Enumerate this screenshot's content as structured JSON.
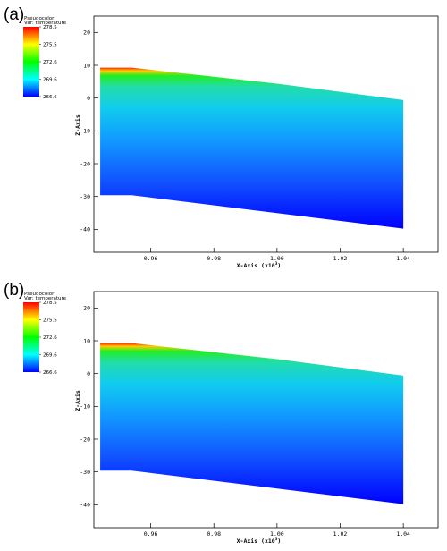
{
  "chart_data": [
    {
      "type": "heatmap",
      "panel_label": "(a)",
      "legend_title": "Pseudocolor",
      "legend_var": "Var: temperature",
      "legend_values": [
        "278.5",
        "275.5",
        "272.6",
        "269.6",
        "266.6"
      ],
      "value_range": [
        266.6,
        278.5
      ],
      "xlabel": "X-Axis (x10",
      "xlabel_exp": "3",
      "xlabel_close": ")",
      "ylabel": "Z-Axis",
      "x_ticks": [
        "0.96",
        "0.98",
        "1.00",
        "1.02",
        "1.04"
      ],
      "x_tick_values": [
        0.96,
        0.98,
        1.0,
        1.02,
        1.04
      ],
      "xlim": [
        0.942,
        1.051
      ],
      "y_ticks": [
        "20",
        "10",
        "0",
        "-10",
        "-20",
        "-30",
        "-40"
      ],
      "y_tick_values": [
        20,
        10,
        0,
        -10,
        -20,
        -30,
        -40
      ],
      "ylim": [
        -47,
        25
      ],
      "domain_top": [
        [
          0.944,
          9.3
        ],
        [
          0.954,
          9.3
        ],
        [
          1.0,
          4.4
        ],
        [
          1.04,
          -0.6
        ]
      ],
      "domain_bottom": [
        [
          0.944,
          -29.6
        ],
        [
          0.954,
          -29.6
        ],
        [
          1.04,
          -39.8
        ]
      ],
      "colormap": [
        "#0000ff",
        "#00ffff",
        "#00ff00",
        "#ffff00",
        "#ff0000"
      ]
    },
    {
      "type": "heatmap",
      "panel_label": "(b)",
      "legend_title": "Pseudocolor",
      "legend_var": "Var: temperature",
      "legend_values": [
        "278.5",
        "275.5",
        "272.6",
        "269.6",
        "266.6"
      ],
      "value_range": [
        266.6,
        278.5
      ],
      "xlabel": "X-Axis (x10",
      "xlabel_exp": "3",
      "xlabel_close": ")",
      "ylabel": "Z-Axis",
      "x_ticks": [
        "0.96",
        "0.98",
        "1.00",
        "1.02",
        "1.04"
      ],
      "x_tick_values": [
        0.96,
        0.98,
        1.0,
        1.02,
        1.04
      ],
      "xlim": [
        0.942,
        1.051
      ],
      "y_ticks": [
        "20",
        "10",
        "0",
        "-10",
        "-20",
        "-30",
        "-40"
      ],
      "y_tick_values": [
        20,
        10,
        0,
        -10,
        -20,
        -30,
        -40
      ],
      "ylim": [
        -47,
        25
      ],
      "domain_top": [
        [
          0.944,
          9.3
        ],
        [
          0.954,
          9.3
        ],
        [
          1.0,
          4.4
        ],
        [
          1.04,
          -0.6
        ]
      ],
      "domain_bottom": [
        [
          0.944,
          -29.6
        ],
        [
          0.954,
          -29.6
        ],
        [
          1.04,
          -39.8
        ]
      ],
      "colormap": [
        "#0000ff",
        "#00ffff",
        "#00ff00",
        "#ffff00",
        "#ff0000"
      ]
    }
  ]
}
